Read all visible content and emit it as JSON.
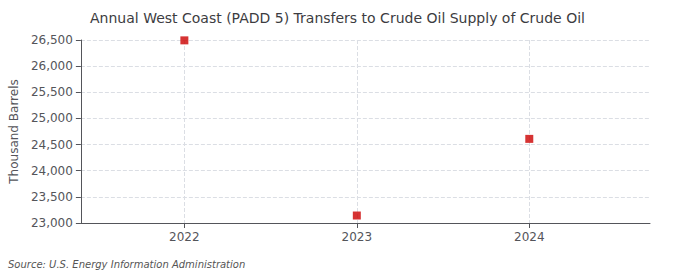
{
  "chart_data": {
    "type": "scatter",
    "title": "Annual West Coast (PADD 5) Transfers to Crude Oil Supply of Crude Oil",
    "ylabel": "Thousand Barrels",
    "source": "Source: U.S. Energy Information Administration",
    "x": [
      2022,
      2023,
      2024
    ],
    "values": [
      26493,
      23143,
      24609
    ],
    "color": "#cc0000",
    "marker": "square",
    "xlim": [
      2021.4,
      2024.7
    ],
    "xticks": [
      2022,
      2023,
      2024
    ],
    "ylim": [
      23000,
      26500
    ],
    "yticks": [
      {
        "value": 23000,
        "label": "23,000"
      },
      {
        "value": 23500,
        "label": "23,500"
      },
      {
        "value": 24000,
        "label": "24,000"
      },
      {
        "value": 24500,
        "label": "24,500"
      },
      {
        "value": 25000,
        "label": "25,000"
      },
      {
        "value": 25500,
        "label": "25,500"
      },
      {
        "value": 26000,
        "label": "26,000"
      },
      {
        "value": 26500,
        "label": "26,500"
      }
    ],
    "grid": true
  }
}
